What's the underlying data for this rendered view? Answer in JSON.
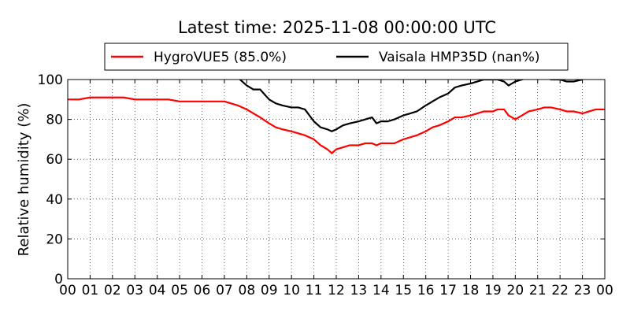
{
  "chart_data": {
    "type": "line",
    "title": "Latest time: 2025-11-08 00:00:00 UTC",
    "ylabel": "Relative humidity (%)",
    "xlabel": "",
    "xlim": [
      0,
      24
    ],
    "ylim": [
      0,
      100
    ],
    "grid": true,
    "legend_position": "top",
    "x_ticks": [
      "00",
      "01",
      "02",
      "03",
      "04",
      "05",
      "06",
      "07",
      "08",
      "09",
      "10",
      "11",
      "12",
      "13",
      "14",
      "15",
      "16",
      "17",
      "18",
      "19",
      "20",
      "21",
      "22",
      "23",
      "00"
    ],
    "y_ticks": [
      "0",
      "20",
      "40",
      "60",
      "80",
      "100"
    ],
    "series": [
      {
        "name": "HygroVUE5 (85.0%)",
        "color": "#ff0000",
        "x": [
          0,
          0.5,
          1,
          1.5,
          2,
          2.5,
          3,
          3.5,
          4,
          4.5,
          5,
          5.5,
          6,
          6.5,
          7,
          7.3,
          7.6,
          8,
          8.3,
          8.6,
          9,
          9.3,
          9.6,
          10,
          10.3,
          10.6,
          11,
          11.3,
          11.6,
          11.8,
          12,
          12.3,
          12.6,
          13,
          13.3,
          13.6,
          13.8,
          14,
          14.3,
          14.6,
          15,
          15.3,
          15.6,
          16,
          16.3,
          16.6,
          17,
          17.3,
          17.6,
          18,
          18.3,
          18.6,
          19,
          19.2,
          19.5,
          19.7,
          20,
          20.3,
          20.6,
          21,
          21.3,
          21.6,
          22,
          22.3,
          22.6,
          23,
          23.3,
          23.6,
          24
        ],
        "values": [
          90,
          90,
          91,
          91,
          91,
          91,
          90,
          90,
          90,
          90,
          89,
          89,
          89,
          89,
          89,
          88,
          87,
          85,
          83,
          81,
          78,
          76,
          75,
          74,
          73,
          72,
          70,
          67,
          65,
          63,
          65,
          66,
          67,
          67,
          68,
          68,
          67,
          68,
          68,
          68,
          70,
          71,
          72,
          74,
          76,
          77,
          79,
          81,
          81,
          82,
          83,
          84,
          84,
          85,
          85,
          82,
          80,
          82,
          84,
          85,
          86,
          86,
          85,
          84,
          84,
          83,
          84,
          85,
          85
        ]
      },
      {
        "name": "Vaisala HMP35D (nan%)",
        "color": "#000000",
        "x": [
          7.7,
          8,
          8.3,
          8.6,
          9,
          9.3,
          9.6,
          10,
          10.3,
          10.6,
          11,
          11.3,
          11.6,
          11.8,
          12,
          12.3,
          12.6,
          13,
          13.3,
          13.6,
          13.8,
          14,
          14.3,
          14.6,
          15,
          15.3,
          15.6,
          16,
          16.3,
          16.6,
          17,
          17.3,
          17.6,
          18,
          18.3,
          18.6,
          19,
          19.2,
          19.5,
          19.7,
          20,
          20.3,
          20.6,
          21,
          21.3,
          21.6,
          22,
          22.3,
          22.6,
          23
        ],
        "values": [
          100,
          97,
          95,
          95,
          90,
          88,
          87,
          86,
          86,
          85,
          79,
          76,
          75,
          74,
          75,
          77,
          78,
          79,
          80,
          81,
          78,
          79,
          79,
          80,
          82,
          83,
          84,
          87,
          89,
          91,
          93,
          96,
          97,
          98,
          99,
          100,
          100,
          100,
          99,
          97,
          99,
          100,
          101,
          101,
          101,
          100,
          100,
          99,
          99,
          100
        ]
      }
    ]
  }
}
